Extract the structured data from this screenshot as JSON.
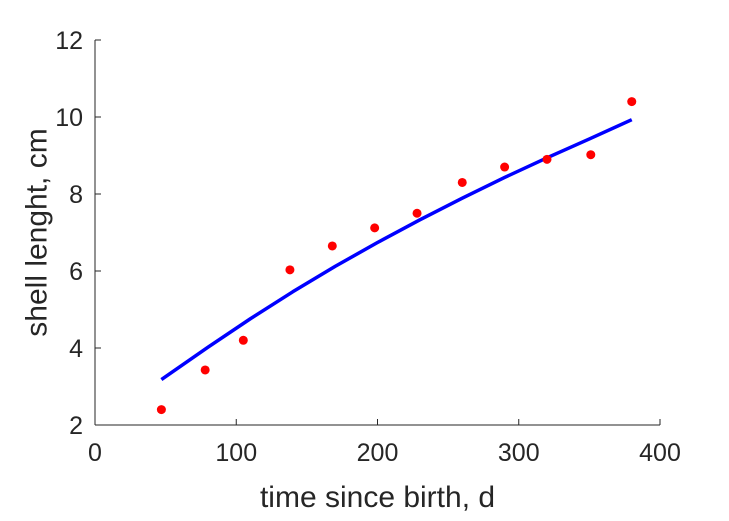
{
  "chart_data": {
    "type": "scatter",
    "title": "",
    "xlabel": "time since birth, d",
    "ylabel": "shell lenght, cm",
    "xlim": [
      0,
      400
    ],
    "ylim": [
      2,
      12
    ],
    "xticks": [
      0,
      100,
      200,
      300,
      400
    ],
    "yticks": [
      2,
      4,
      6,
      8,
      10,
      12
    ],
    "xtick_labels": [
      "0",
      "100",
      "200",
      "300",
      "400"
    ],
    "ytick_labels": [
      "2",
      "4",
      "6",
      "8",
      "10",
      "12"
    ],
    "grid": false,
    "legend": "none",
    "series": [
      {
        "kind": "scatter",
        "color": "#ff0000",
        "x": [
          47,
          78,
          105,
          138,
          168,
          198,
          228,
          260,
          290,
          320,
          351,
          380
        ],
        "y": [
          2.4,
          3.43,
          4.2,
          6.03,
          6.65,
          7.12,
          7.5,
          8.3,
          8.7,
          8.9,
          9.02,
          10.4
        ]
      },
      {
        "kind": "line",
        "color": "#0000ff",
        "x": [
          47,
          80,
          110,
          140,
          170,
          200,
          230,
          260,
          290,
          320,
          350,
          380
        ],
        "y": [
          3.18,
          4.02,
          4.76,
          5.46,
          6.12,
          6.74,
          7.33,
          7.89,
          8.43,
          8.94,
          9.43,
          9.93
        ]
      }
    ]
  }
}
